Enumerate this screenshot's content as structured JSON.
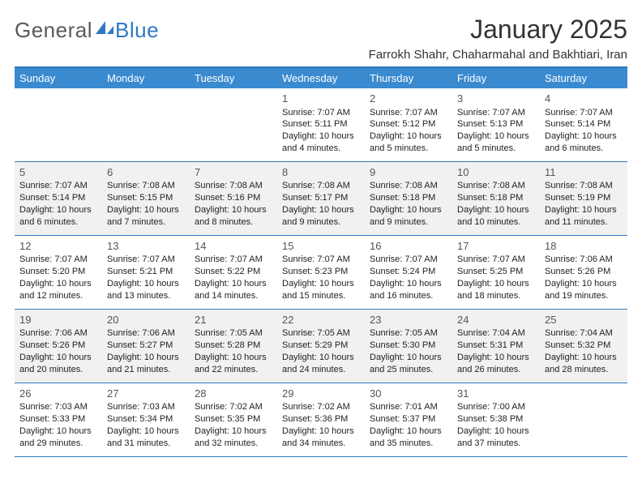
{
  "logo": {
    "general": "General",
    "blue": "Blue",
    "shape_color": "#2f79c2"
  },
  "title": "January 2025",
  "location": "Farrokh Shahr, Chaharmahal and Bakhtiari, Iran",
  "calendar": {
    "type": "table",
    "header_bg": "#3a8ad0",
    "header_fg": "#ffffff",
    "border_color": "#2f79c2",
    "shaded_bg": "#f1f1f1",
    "text_color": "#222222",
    "daynum_color": "#555555",
    "font_size_body": 11,
    "font_size_header": 13,
    "font_size_daynum": 13,
    "day_labels": [
      "Sunday",
      "Monday",
      "Tuesday",
      "Wednesday",
      "Thursday",
      "Friday",
      "Saturday"
    ],
    "weeks": [
      {
        "shaded": false,
        "days": [
          null,
          null,
          null,
          {
            "n": "1",
            "sr": "Sunrise: 7:07 AM",
            "ss": "Sunset: 5:11 PM",
            "dl1": "Daylight: 10 hours",
            "dl2": "and 4 minutes."
          },
          {
            "n": "2",
            "sr": "Sunrise: 7:07 AM",
            "ss": "Sunset: 5:12 PM",
            "dl1": "Daylight: 10 hours",
            "dl2": "and 5 minutes."
          },
          {
            "n": "3",
            "sr": "Sunrise: 7:07 AM",
            "ss": "Sunset: 5:13 PM",
            "dl1": "Daylight: 10 hours",
            "dl2": "and 5 minutes."
          },
          {
            "n": "4",
            "sr": "Sunrise: 7:07 AM",
            "ss": "Sunset: 5:14 PM",
            "dl1": "Daylight: 10 hours",
            "dl2": "and 6 minutes."
          }
        ]
      },
      {
        "shaded": true,
        "days": [
          {
            "n": "5",
            "sr": "Sunrise: 7:07 AM",
            "ss": "Sunset: 5:14 PM",
            "dl1": "Daylight: 10 hours",
            "dl2": "and 6 minutes."
          },
          {
            "n": "6",
            "sr": "Sunrise: 7:08 AM",
            "ss": "Sunset: 5:15 PM",
            "dl1": "Daylight: 10 hours",
            "dl2": "and 7 minutes."
          },
          {
            "n": "7",
            "sr": "Sunrise: 7:08 AM",
            "ss": "Sunset: 5:16 PM",
            "dl1": "Daylight: 10 hours",
            "dl2": "and 8 minutes."
          },
          {
            "n": "8",
            "sr": "Sunrise: 7:08 AM",
            "ss": "Sunset: 5:17 PM",
            "dl1": "Daylight: 10 hours",
            "dl2": "and 9 minutes."
          },
          {
            "n": "9",
            "sr": "Sunrise: 7:08 AM",
            "ss": "Sunset: 5:18 PM",
            "dl1": "Daylight: 10 hours",
            "dl2": "and 9 minutes."
          },
          {
            "n": "10",
            "sr": "Sunrise: 7:08 AM",
            "ss": "Sunset: 5:18 PM",
            "dl1": "Daylight: 10 hours",
            "dl2": "and 10 minutes."
          },
          {
            "n": "11",
            "sr": "Sunrise: 7:08 AM",
            "ss": "Sunset: 5:19 PM",
            "dl1": "Daylight: 10 hours",
            "dl2": "and 11 minutes."
          }
        ]
      },
      {
        "shaded": false,
        "days": [
          {
            "n": "12",
            "sr": "Sunrise: 7:07 AM",
            "ss": "Sunset: 5:20 PM",
            "dl1": "Daylight: 10 hours",
            "dl2": "and 12 minutes."
          },
          {
            "n": "13",
            "sr": "Sunrise: 7:07 AM",
            "ss": "Sunset: 5:21 PM",
            "dl1": "Daylight: 10 hours",
            "dl2": "and 13 minutes."
          },
          {
            "n": "14",
            "sr": "Sunrise: 7:07 AM",
            "ss": "Sunset: 5:22 PM",
            "dl1": "Daylight: 10 hours",
            "dl2": "and 14 minutes."
          },
          {
            "n": "15",
            "sr": "Sunrise: 7:07 AM",
            "ss": "Sunset: 5:23 PM",
            "dl1": "Daylight: 10 hours",
            "dl2": "and 15 minutes."
          },
          {
            "n": "16",
            "sr": "Sunrise: 7:07 AM",
            "ss": "Sunset: 5:24 PM",
            "dl1": "Daylight: 10 hours",
            "dl2": "and 16 minutes."
          },
          {
            "n": "17",
            "sr": "Sunrise: 7:07 AM",
            "ss": "Sunset: 5:25 PM",
            "dl1": "Daylight: 10 hours",
            "dl2": "and 18 minutes."
          },
          {
            "n": "18",
            "sr": "Sunrise: 7:06 AM",
            "ss": "Sunset: 5:26 PM",
            "dl1": "Daylight: 10 hours",
            "dl2": "and 19 minutes."
          }
        ]
      },
      {
        "shaded": true,
        "days": [
          {
            "n": "19",
            "sr": "Sunrise: 7:06 AM",
            "ss": "Sunset: 5:26 PM",
            "dl1": "Daylight: 10 hours",
            "dl2": "and 20 minutes."
          },
          {
            "n": "20",
            "sr": "Sunrise: 7:06 AM",
            "ss": "Sunset: 5:27 PM",
            "dl1": "Daylight: 10 hours",
            "dl2": "and 21 minutes."
          },
          {
            "n": "21",
            "sr": "Sunrise: 7:05 AM",
            "ss": "Sunset: 5:28 PM",
            "dl1": "Daylight: 10 hours",
            "dl2": "and 22 minutes."
          },
          {
            "n": "22",
            "sr": "Sunrise: 7:05 AM",
            "ss": "Sunset: 5:29 PM",
            "dl1": "Daylight: 10 hours",
            "dl2": "and 24 minutes."
          },
          {
            "n": "23",
            "sr": "Sunrise: 7:05 AM",
            "ss": "Sunset: 5:30 PM",
            "dl1": "Daylight: 10 hours",
            "dl2": "and 25 minutes."
          },
          {
            "n": "24",
            "sr": "Sunrise: 7:04 AM",
            "ss": "Sunset: 5:31 PM",
            "dl1": "Daylight: 10 hours",
            "dl2": "and 26 minutes."
          },
          {
            "n": "25",
            "sr": "Sunrise: 7:04 AM",
            "ss": "Sunset: 5:32 PM",
            "dl1": "Daylight: 10 hours",
            "dl2": "and 28 minutes."
          }
        ]
      },
      {
        "shaded": false,
        "days": [
          {
            "n": "26",
            "sr": "Sunrise: 7:03 AM",
            "ss": "Sunset: 5:33 PM",
            "dl1": "Daylight: 10 hours",
            "dl2": "and 29 minutes."
          },
          {
            "n": "27",
            "sr": "Sunrise: 7:03 AM",
            "ss": "Sunset: 5:34 PM",
            "dl1": "Daylight: 10 hours",
            "dl2": "and 31 minutes."
          },
          {
            "n": "28",
            "sr": "Sunrise: 7:02 AM",
            "ss": "Sunset: 5:35 PM",
            "dl1": "Daylight: 10 hours",
            "dl2": "and 32 minutes."
          },
          {
            "n": "29",
            "sr": "Sunrise: 7:02 AM",
            "ss": "Sunset: 5:36 PM",
            "dl1": "Daylight: 10 hours",
            "dl2": "and 34 minutes."
          },
          {
            "n": "30",
            "sr": "Sunrise: 7:01 AM",
            "ss": "Sunset: 5:37 PM",
            "dl1": "Daylight: 10 hours",
            "dl2": "and 35 minutes."
          },
          {
            "n": "31",
            "sr": "Sunrise: 7:00 AM",
            "ss": "Sunset: 5:38 PM",
            "dl1": "Daylight: 10 hours",
            "dl2": "and 37 minutes."
          },
          null
        ]
      }
    ]
  }
}
